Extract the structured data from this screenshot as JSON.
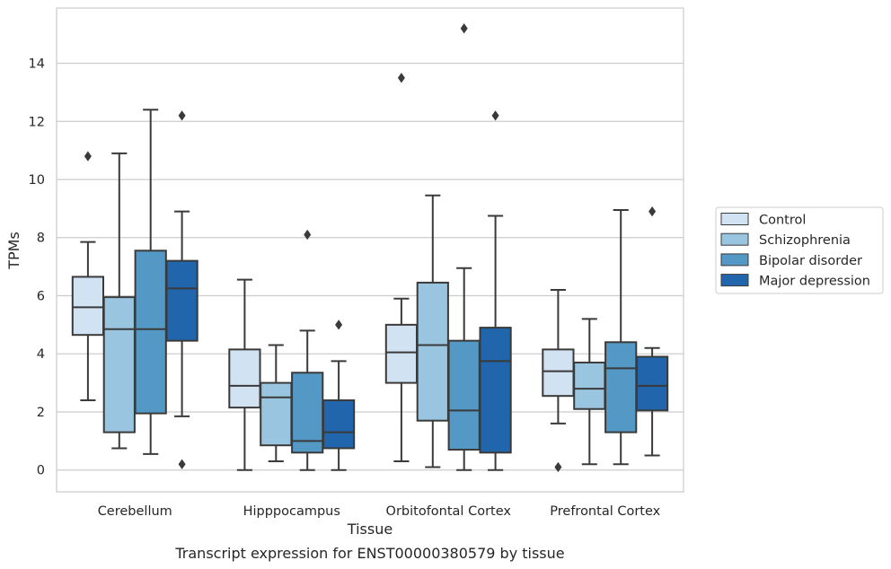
{
  "caption": "Transcript expression for ENST00000380579 by tissue",
  "chart_data": {
    "type": "box",
    "xlabel": "Tissue",
    "ylabel": "TPMs",
    "ylim": [
      -0.75,
      15.9
    ],
    "yticks": [
      0,
      2,
      4,
      6,
      8,
      10,
      12,
      14
    ],
    "grid": "horizontal",
    "legend_position": "right",
    "categories": [
      "Cerebellum",
      "Hipppocampus",
      "Orbitofontal Cortex",
      "Prefrontal Cortex"
    ],
    "series": [
      {
        "name": "Control",
        "color": "#d1e2f2",
        "boxes": [
          {
            "whisker_low": 2.4,
            "q1": 4.65,
            "median": 5.6,
            "q3": 6.65,
            "whisker_high": 7.85,
            "outliers": [
              10.8
            ]
          },
          {
            "whisker_low": 0.0,
            "q1": 2.15,
            "median": 2.9,
            "q3": 4.15,
            "whisker_high": 6.55,
            "outliers": []
          },
          {
            "whisker_low": 0.3,
            "q1": 3.0,
            "median": 4.05,
            "q3": 5.0,
            "whisker_high": 5.9,
            "outliers": [
              13.5
            ]
          },
          {
            "whisker_low": 1.6,
            "q1": 2.55,
            "median": 3.4,
            "q3": 4.15,
            "whisker_high": 6.2,
            "outliers": [
              0.1
            ]
          }
        ]
      },
      {
        "name": "Schizophrenia",
        "color": "#9ac5e0",
        "boxes": [
          {
            "whisker_low": 0.75,
            "q1": 1.3,
            "median": 4.85,
            "q3": 5.95,
            "whisker_high": 10.9,
            "outliers": []
          },
          {
            "whisker_low": 0.3,
            "q1": 0.85,
            "median": 2.5,
            "q3": 3.0,
            "whisker_high": 4.3,
            "outliers": []
          },
          {
            "whisker_low": 0.1,
            "q1": 1.7,
            "median": 4.3,
            "q3": 6.45,
            "whisker_high": 9.45,
            "outliers": []
          },
          {
            "whisker_low": 0.2,
            "q1": 2.1,
            "median": 2.8,
            "q3": 3.7,
            "whisker_high": 5.2,
            "outliers": []
          }
        ]
      },
      {
        "name": "Bipolar disorder",
        "color": "#5498c6",
        "boxes": [
          {
            "whisker_low": 0.55,
            "q1": 1.95,
            "median": 4.85,
            "q3": 7.55,
            "whisker_high": 12.4,
            "outliers": []
          },
          {
            "whisker_low": 0.0,
            "q1": 0.6,
            "median": 1.0,
            "q3": 3.35,
            "whisker_high": 4.8,
            "outliers": [
              8.1
            ]
          },
          {
            "whisker_low": 0.0,
            "q1": 0.7,
            "median": 2.05,
            "q3": 4.45,
            "whisker_high": 6.95,
            "outliers": [
              15.2
            ]
          },
          {
            "whisker_low": 0.2,
            "q1": 1.3,
            "median": 3.5,
            "q3": 4.4,
            "whisker_high": 8.95,
            "outliers": []
          }
        ]
      },
      {
        "name": "Major depression",
        "color": "#2166ac",
        "boxes": [
          {
            "whisker_low": 1.85,
            "q1": 4.45,
            "median": 6.25,
            "q3": 7.2,
            "whisker_high": 8.9,
            "outliers": [
              12.2,
              0.2
            ]
          },
          {
            "whisker_low": 0.0,
            "q1": 0.75,
            "median": 1.3,
            "q3": 2.4,
            "whisker_high": 3.75,
            "outliers": [
              5.0
            ]
          },
          {
            "whisker_low": 0.0,
            "q1": 0.6,
            "median": 3.75,
            "q3": 4.9,
            "whisker_high": 8.75,
            "outliers": [
              12.2
            ]
          },
          {
            "whisker_low": 0.5,
            "q1": 2.05,
            "median": 2.9,
            "q3": 3.9,
            "whisker_high": 4.2,
            "outliers": [
              8.9
            ]
          }
        ]
      }
    ]
  }
}
